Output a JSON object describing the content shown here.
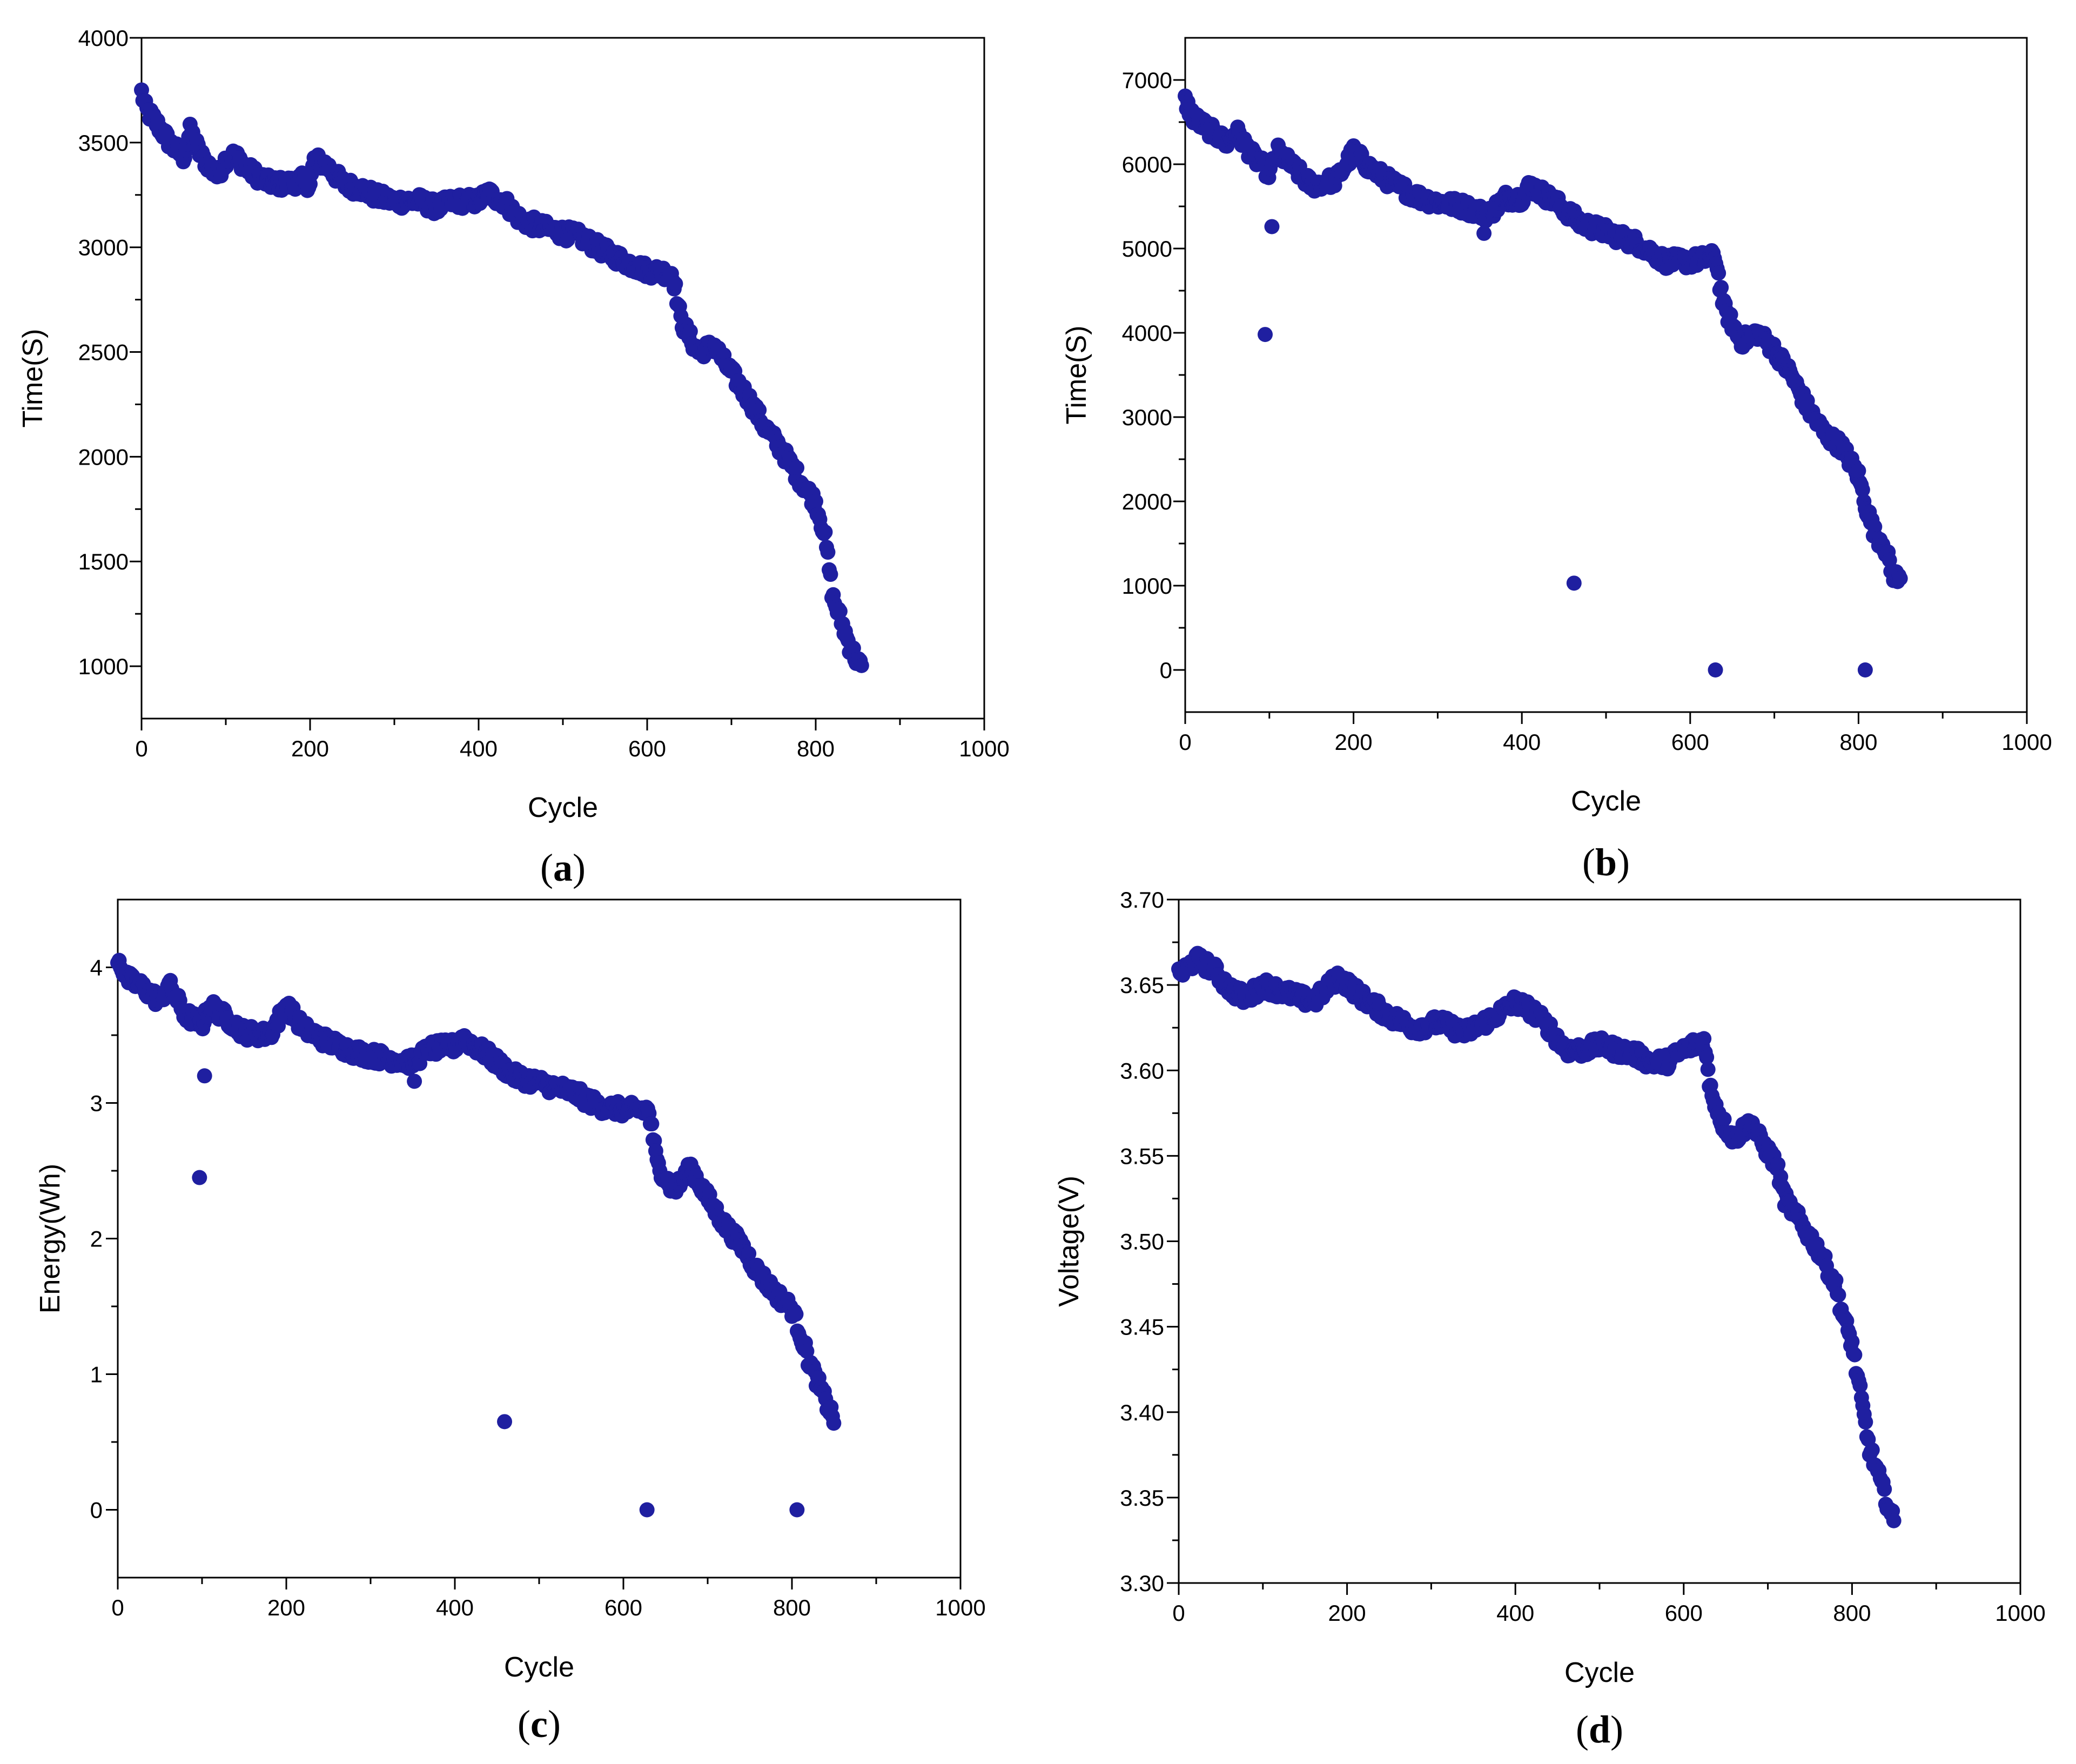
{
  "colors": {
    "marker": "#1f1fa0",
    "axis": "#000000",
    "background": "#ffffff"
  },
  "chart_data": [
    {
      "type": "scatter",
      "caption": {
        "open": "(",
        "letter": "a",
        "close": ")"
      },
      "xlabel": "Cycle",
      "ylabel": "Time(S)",
      "xlim": [
        0,
        1000
      ],
      "ylim": [
        750,
        4000
      ],
      "xticks": [
        "0",
        "200",
        "400",
        "600",
        "800",
        "1000"
      ],
      "yticks": [
        "1000",
        "1500",
        "2000",
        "2500",
        "3000",
        "3500",
        "4000"
      ],
      "keypoints": [
        [
          0,
          3740
        ],
        [
          5,
          3660
        ],
        [
          20,
          3580
        ],
        [
          35,
          3490
        ],
        [
          50,
          3430
        ],
        [
          58,
          3560
        ],
        [
          70,
          3440
        ],
        [
          90,
          3340
        ],
        [
          100,
          3420
        ],
        [
          110,
          3440
        ],
        [
          130,
          3360
        ],
        [
          150,
          3310
        ],
        [
          170,
          3300
        ],
        [
          190,
          3320
        ],
        [
          200,
          3300
        ],
        [
          205,
          3420
        ],
        [
          220,
          3390
        ],
        [
          240,
          3300
        ],
        [
          260,
          3280
        ],
        [
          280,
          3240
        ],
        [
          300,
          3220
        ],
        [
          330,
          3220
        ],
        [
          350,
          3190
        ],
        [
          370,
          3220
        ],
        [
          400,
          3220
        ],
        [
          410,
          3260
        ],
        [
          430,
          3220
        ],
        [
          450,
          3130
        ],
        [
          480,
          3090
        ],
        [
          520,
          3050
        ],
        [
          550,
          2980
        ],
        [
          580,
          2920
        ],
        [
          600,
          2890
        ],
        [
          620,
          2880
        ],
        [
          630,
          2880
        ],
        [
          640,
          2650
        ],
        [
          660,
          2500
        ],
        [
          680,
          2530
        ],
        [
          690,
          2460
        ],
        [
          720,
          2280
        ],
        [
          740,
          2140
        ],
        [
          760,
          2030
        ],
        [
          780,
          1900
        ],
        [
          800,
          1780
        ],
        [
          810,
          1640
        ],
        [
          815,
          1500
        ],
        [
          820,
          1330
        ],
        [
          830,
          1220
        ],
        [
          840,
          1100
        ],
        [
          850,
          1020
        ],
        [
          855,
          990
        ]
      ],
      "outliers": []
    },
    {
      "type": "scatter",
      "caption": {
        "open": "(",
        "letter": "b",
        "close": ")"
      },
      "xlabel": "Cycle",
      "ylabel": "Time(S)",
      "xlim": [
        0,
        1000
      ],
      "ylim": [
        -500,
        7500
      ],
      "xticks": [
        "0",
        "200",
        "400",
        "600",
        "800",
        "1000"
      ],
      "yticks": [
        "0",
        "1000",
        "2000",
        "3000",
        "4000",
        "5000",
        "6000",
        "7000"
      ],
      "keypoints": [
        [
          0,
          6750
        ],
        [
          10,
          6550
        ],
        [
          30,
          6400
        ],
        [
          50,
          6250
        ],
        [
          60,
          6400
        ],
        [
          80,
          6100
        ],
        [
          100,
          5900
        ],
        [
          110,
          6150
        ],
        [
          130,
          5950
        ],
        [
          150,
          5750
        ],
        [
          180,
          5820
        ],
        [
          200,
          6150
        ],
        [
          220,
          5950
        ],
        [
          250,
          5750
        ],
        [
          280,
          5600
        ],
        [
          300,
          5550
        ],
        [
          330,
          5500
        ],
        [
          360,
          5400
        ],
        [
          380,
          5600
        ],
        [
          400,
          5600
        ],
        [
          410,
          5750
        ],
        [
          440,
          5550
        ],
        [
          470,
          5300
        ],
        [
          500,
          5200
        ],
        [
          540,
          5050
        ],
        [
          570,
          4850
        ],
        [
          600,
          4850
        ],
        [
          630,
          4900
        ],
        [
          640,
          4300
        ],
        [
          660,
          3900
        ],
        [
          680,
          4000
        ],
        [
          700,
          3800
        ],
        [
          720,
          3500
        ],
        [
          740,
          3100
        ],
        [
          760,
          2800
        ],
        [
          780,
          2650
        ],
        [
          800,
          2300
        ],
        [
          810,
          1900
        ],
        [
          820,
          1600
        ],
        [
          830,
          1500
        ],
        [
          840,
          1150
        ],
        [
          850,
          1050
        ]
      ],
      "outliers": [
        [
          95,
          3980
        ],
        [
          103,
          5260
        ],
        [
          355,
          5180
        ],
        [
          462,
          1030
        ],
        [
          630,
          0
        ],
        [
          808,
          0
        ]
      ]
    },
    {
      "type": "scatter",
      "caption": {
        "open": "(",
        "letter": "c",
        "close": ")"
      },
      "xlabel": "Cycle",
      "ylabel": "Energy(Wh)",
      "xlim": [
        0,
        1000
      ],
      "ylim": [
        -0.5,
        4.5
      ],
      "xticks": [
        "0",
        "200",
        "400",
        "600",
        "800",
        "1000"
      ],
      "yticks": [
        "0",
        "1",
        "2",
        "3",
        "4"
      ],
      "keypoints": [
        [
          0,
          4.08
        ],
        [
          10,
          3.92
        ],
        [
          30,
          3.85
        ],
        [
          50,
          3.75
        ],
        [
          60,
          3.88
        ],
        [
          80,
          3.65
        ],
        [
          100,
          3.58
        ],
        [
          110,
          3.72
        ],
        [
          130,
          3.62
        ],
        [
          150,
          3.52
        ],
        [
          180,
          3.5
        ],
        [
          200,
          3.72
        ],
        [
          220,
          3.55
        ],
        [
          250,
          3.45
        ],
        [
          280,
          3.38
        ],
        [
          300,
          3.35
        ],
        [
          330,
          3.32
        ],
        [
          350,
          3.3
        ],
        [
          370,
          3.4
        ],
        [
          400,
          3.42
        ],
        [
          410,
          3.48
        ],
        [
          440,
          3.35
        ],
        [
          470,
          3.2
        ],
        [
          500,
          3.15
        ],
        [
          540,
          3.08
        ],
        [
          570,
          2.98
        ],
        [
          600,
          2.95
        ],
        [
          630,
          2.95
        ],
        [
          640,
          2.55
        ],
        [
          660,
          2.35
        ],
        [
          680,
          2.52
        ],
        [
          700,
          2.3
        ],
        [
          720,
          2.1
        ],
        [
          740,
          1.95
        ],
        [
          760,
          1.75
        ],
        [
          780,
          1.6
        ],
        [
          800,
          1.48
        ],
        [
          810,
          1.3
        ],
        [
          820,
          1.1
        ],
        [
          830,
          0.95
        ],
        [
          840,
          0.8
        ],
        [
          850,
          0.67
        ]
      ],
      "outliers": [
        [
          97,
          2.45
        ],
        [
          103,
          3.2
        ],
        [
          352,
          3.16
        ],
        [
          459,
          0.65
        ],
        [
          628,
          0
        ],
        [
          806,
          0
        ]
      ]
    },
    {
      "type": "scatter",
      "caption": {
        "open": "(",
        "letter": "d",
        "close": ")"
      },
      "xlabel": "Cycle",
      "ylabel": "Voltage(V)",
      "xlim": [
        0,
        1000
      ],
      "ylim": [
        3.3,
        3.7
      ],
      "xticks": [
        "0",
        "200",
        "400",
        "600",
        "800",
        "1000"
      ],
      "yticks": [
        "3.30",
        "3.35",
        "3.40",
        "3.45",
        "3.50",
        "3.55",
        "3.60",
        "3.65",
        "3.70"
      ],
      "keypoints": [
        [
          0,
          3.655
        ],
        [
          20,
          3.665
        ],
        [
          40,
          3.66
        ],
        [
          60,
          3.648
        ],
        [
          80,
          3.642
        ],
        [
          100,
          3.65
        ],
        [
          130,
          3.645
        ],
        [
          160,
          3.64
        ],
        [
          190,
          3.655
        ],
        [
          220,
          3.642
        ],
        [
          250,
          3.632
        ],
        [
          280,
          3.625
        ],
        [
          310,
          3.628
        ],
        [
          340,
          3.622
        ],
        [
          370,
          3.63
        ],
        [
          400,
          3.64
        ],
        [
          420,
          3.635
        ],
        [
          440,
          3.625
        ],
        [
          460,
          3.612
        ],
        [
          480,
          3.612
        ],
        [
          500,
          3.615
        ],
        [
          520,
          3.612
        ],
        [
          540,
          3.61
        ],
        [
          560,
          3.605
        ],
        [
          580,
          3.605
        ],
        [
          600,
          3.612
        ],
        [
          625,
          3.618
        ],
        [
          630,
          3.592
        ],
        [
          645,
          3.57
        ],
        [
          660,
          3.56
        ],
        [
          680,
          3.57
        ],
        [
          690,
          3.56
        ],
        [
          710,
          3.545
        ],
        [
          720,
          3.525
        ],
        [
          740,
          3.51
        ],
        [
          760,
          3.495
        ],
        [
          780,
          3.475
        ],
        [
          790,
          3.455
        ],
        [
          800,
          3.44
        ],
        [
          810,
          3.41
        ],
        [
          820,
          3.38
        ],
        [
          830,
          3.365
        ],
        [
          840,
          3.35
        ],
        [
          850,
          3.335
        ]
      ],
      "outliers": []
    }
  ]
}
